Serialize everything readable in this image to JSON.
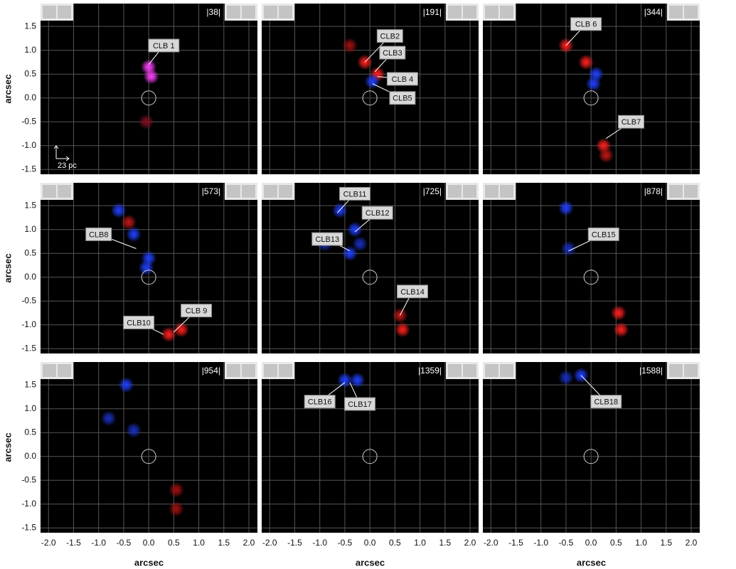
{
  "chart_data": [
    {
      "type": "image",
      "title": "|38|",
      "ylabel": "arcsec",
      "scalebar_label": "23 pc",
      "xlim": [
        -2.16,
        2.17
      ],
      "ylim": [
        -1.6,
        1.98
      ],
      "xticks": [
        {
          "value": -2,
          "label": "-2.0"
        },
        -1.5,
        {
          "value": -1,
          "label": "-1.0"
        },
        -0.5,
        {
          "value": 0,
          "label": "0.0"
        },
        0.5,
        {
          "value": 1,
          "label": "1.0"
        },
        1.5,
        {
          "value": 2,
          "label": "2.0"
        }
      ],
      "yticks": [
        -1.5,
        {
          "value": -1,
          "label": "-1.0"
        },
        -0.5,
        {
          "value": 0,
          "label": "0.0"
        },
        0.5,
        {
          "value": 1,
          "label": "1.0"
        },
        1.5
      ],
      "grid": true,
      "spots": [
        {
          "x": 0,
          "y": 0.65,
          "color": "#ff40ff"
        },
        {
          "x": 0.05,
          "y": 0.45,
          "color": "#ff40ff"
        },
        {
          "x": -0.05,
          "y": -0.5,
          "color": "#801020"
        }
      ],
      "annotations": [
        {
          "text": "CLB 1",
          "x": 0,
          "y": 0.7,
          "text_x": 0.3,
          "text_y": 1.1
        }
      ]
    },
    {
      "type": "image",
      "title": "|191|",
      "xlim": [
        -2.16,
        2.17
      ],
      "ylim": [
        -1.6,
        1.98
      ],
      "xticks": [
        {
          "value": -2,
          "label": "-2.0"
        },
        -1.5,
        {
          "value": -1,
          "label": "-1.0"
        },
        -0.5,
        {
          "value": 0,
          "label": "0.0"
        },
        0.5,
        {
          "value": 1,
          "label": "1.0"
        },
        1.5,
        {
          "value": 2,
          "label": "2.0"
        }
      ],
      "yticks": [
        -1.5,
        {
          "value": -1,
          "label": "-1.0"
        },
        -0.5,
        {
          "value": 0,
          "label": "0.0"
        },
        0.5,
        {
          "value": 1,
          "label": "1.0"
        },
        1.5
      ],
      "grid": true,
      "spots": [
        {
          "x": -0.1,
          "y": 0.75,
          "color": "#ff2020"
        },
        {
          "x": 0.15,
          "y": 0.5,
          "color": "#ff2020"
        },
        {
          "x": 0.05,
          "y": 0.35,
          "color": "#2040ff"
        },
        {
          "x": -0.4,
          "y": 1.1,
          "color": "#a01010"
        }
      ],
      "annotations": [
        {
          "text": "CLB2",
          "x": -0.1,
          "y": 0.75,
          "text_x": 0.4,
          "text_y": 1.3
        },
        {
          "text": "CLB3",
          "x": 0.1,
          "y": 0.55,
          "text_x": 0.45,
          "text_y": 0.95
        },
        {
          "text": "CLB 4",
          "x": 0.15,
          "y": 0.45,
          "text_x": 0.65,
          "text_y": 0.4
        },
        {
          "text": "CLB5",
          "x": 0.05,
          "y": 0.3,
          "text_x": 0.65,
          "text_y": 0
        }
      ]
    },
    {
      "type": "image",
      "title": "|344|",
      "xlim": [
        -2.16,
        2.17
      ],
      "ylim": [
        -1.6,
        1.98
      ],
      "xticks": [
        {
          "value": -2,
          "label": "-2.0"
        },
        -1.5,
        {
          "value": -1,
          "label": "-1.0"
        },
        -0.5,
        {
          "value": 0,
          "label": "0.0"
        },
        0.5,
        {
          "value": 1,
          "label": "1.0"
        },
        1.5,
        {
          "value": 2,
          "label": "2.0"
        }
      ],
      "yticks": [
        -1.5,
        {
          "value": -1,
          "label": "-1.0"
        },
        -0.5,
        {
          "value": 0,
          "label": "0.0"
        },
        0.5,
        {
          "value": 1,
          "label": "1.0"
        },
        1.5
      ],
      "grid": true,
      "spots": [
        {
          "x": -0.5,
          "y": 1.1,
          "color": "#ff2020"
        },
        {
          "x": -0.1,
          "y": 0.75,
          "color": "#ff2020"
        },
        {
          "x": 0.1,
          "y": 0.5,
          "color": "#2040ff"
        },
        {
          "x": 0.05,
          "y": 0.3,
          "color": "#2040ff"
        },
        {
          "x": 0.25,
          "y": -1,
          "color": "#ff2020"
        },
        {
          "x": 0.3,
          "y": -1.2,
          "color": "#c01818"
        }
      ],
      "annotations": [
        {
          "text": "CLB 6",
          "x": -0.5,
          "y": 1.1,
          "text_x": -0.1,
          "text_y": 1.55
        },
        {
          "text": "CLB7",
          "x": 0.3,
          "y": -0.85,
          "text_x": 0.8,
          "text_y": -0.5
        }
      ]
    },
    {
      "type": "image",
      "title": "|573|",
      "ylabel": "arcsec",
      "xlim": [
        -2.16,
        2.17
      ],
      "ylim": [
        -1.6,
        1.98
      ],
      "xticks": [
        {
          "value": -2,
          "label": "-2.0"
        },
        -1.5,
        {
          "value": -1,
          "label": "-1.0"
        },
        -0.5,
        {
          "value": 0,
          "label": "0.0"
        },
        0.5,
        {
          "value": 1,
          "label": "1.0"
        },
        1.5,
        {
          "value": 2,
          "label": "2.0"
        }
      ],
      "yticks": [
        -1.5,
        {
          "value": -1,
          "label": "-1.0"
        },
        -0.5,
        {
          "value": 0,
          "label": "0.0"
        },
        0.5,
        {
          "value": 1,
          "label": "1.0"
        },
        1.5
      ],
      "grid": true,
      "spots": [
        {
          "x": -0.6,
          "y": 1.4,
          "color": "#2040ff"
        },
        {
          "x": -0.3,
          "y": 0.9,
          "color": "#2040ff"
        },
        {
          "x": 0,
          "y": 0.4,
          "color": "#2040ff"
        },
        {
          "x": -0.05,
          "y": 0.2,
          "color": "#2040ff"
        },
        {
          "x": 0.4,
          "y": -1.2,
          "color": "#ff2020"
        },
        {
          "x": 0.65,
          "y": -1.1,
          "color": "#ff2020"
        },
        {
          "x": -0.4,
          "y": 1.15,
          "color": "#c01818"
        }
      ],
      "annotations": [
        {
          "text": "CLB8",
          "x": -0.25,
          "y": 0.6,
          "text_x": -1,
          "text_y": 0.9
        },
        {
          "text": "CLB10",
          "x": 0.3,
          "y": -1.2,
          "text_x": -0.2,
          "text_y": -0.95
        },
        {
          "text": "CLB 9",
          "x": 0.5,
          "y": -1.15,
          "text_x": 0.95,
          "text_y": -0.7
        }
      ]
    },
    {
      "type": "image",
      "title": "|725|",
      "xlim": [
        -2.16,
        2.17
      ],
      "ylim": [
        -1.6,
        1.98
      ],
      "xticks": [
        {
          "value": -2,
          "label": "-2.0"
        },
        -1.5,
        {
          "value": -1,
          "label": "-1.0"
        },
        -0.5,
        {
          "value": 0,
          "label": "0.0"
        },
        0.5,
        {
          "value": 1,
          "label": "1.0"
        },
        1.5,
        {
          "value": 2,
          "label": "2.0"
        }
      ],
      "yticks": [
        -1.5,
        {
          "value": -1,
          "label": "-1.0"
        },
        -0.5,
        {
          "value": 0,
          "label": "0.0"
        },
        0.5,
        {
          "value": 1,
          "label": "1.0"
        },
        1.5
      ],
      "grid": true,
      "spots": [
        {
          "x": -0.6,
          "y": 1.4,
          "color": "#2040ff"
        },
        {
          "x": -0.3,
          "y": 1,
          "color": "#2040ff"
        },
        {
          "x": -0.4,
          "y": 0.5,
          "color": "#2040ff"
        },
        {
          "x": -0.9,
          "y": 0.7,
          "color": "#1830c0"
        },
        {
          "x": -0.2,
          "y": 0.7,
          "color": "#1830c0"
        },
        {
          "x": 0.65,
          "y": -1.1,
          "color": "#ff2020"
        },
        {
          "x": 0.6,
          "y": -0.8,
          "color": "#c01818"
        }
      ],
      "annotations": [
        {
          "text": "CLB11",
          "x": -0.65,
          "y": 1.35,
          "text_x": -0.3,
          "text_y": 1.75
        },
        {
          "text": "CLB12",
          "x": -0.3,
          "y": 0.95,
          "text_x": 0.15,
          "text_y": 1.35
        },
        {
          "text": "CLB13",
          "x": -0.4,
          "y": 0.55,
          "text_x": -0.85,
          "text_y": 0.8
        },
        {
          "text": "CLB14",
          "x": 0.6,
          "y": -0.8,
          "text_x": 0.85,
          "text_y": -0.3
        }
      ]
    },
    {
      "type": "image",
      "title": "|878|",
      "xlim": [
        -2.16,
        2.17
      ],
      "ylim": [
        -1.6,
        1.98
      ],
      "xticks": [
        {
          "value": -2,
          "label": "-2.0"
        },
        -1.5,
        {
          "value": -1,
          "label": "-1.0"
        },
        -0.5,
        {
          "value": 0,
          "label": "0.0"
        },
        0.5,
        {
          "value": 1,
          "label": "1.0"
        },
        1.5,
        {
          "value": 2,
          "label": "2.0"
        }
      ],
      "yticks": [
        -1.5,
        {
          "value": -1,
          "label": "-1.0"
        },
        -0.5,
        {
          "value": 0,
          "label": "0.0"
        },
        0.5,
        {
          "value": 1,
          "label": "1.0"
        },
        1.5
      ],
      "grid": true,
      "spots": [
        {
          "x": -0.5,
          "y": 1.45,
          "color": "#2040ff"
        },
        {
          "x": -0.45,
          "y": 0.6,
          "color": "#1830c0"
        },
        {
          "x": 0.55,
          "y": -0.75,
          "color": "#ff2020"
        },
        {
          "x": 0.6,
          "y": -1.1,
          "color": "#ff2020"
        }
      ],
      "annotations": [
        {
          "text": "CLB15",
          "x": -0.45,
          "y": 0.55,
          "text_x": 0.25,
          "text_y": 0.9
        }
      ]
    },
    {
      "type": "image",
      "title": "|954|",
      "ylabel": "arcsec",
      "xlabel": "arcsec",
      "xlim": [
        -2.16,
        2.17
      ],
      "ylim": [
        -1.6,
        1.98
      ],
      "xticks": [
        {
          "value": -2,
          "label": "-2.0"
        },
        -1.5,
        {
          "value": -1,
          "label": "-1.0"
        },
        -0.5,
        {
          "value": 0,
          "label": "0.0"
        },
        0.5,
        {
          "value": 1,
          "label": "1.0"
        },
        1.5,
        {
          "value": 2,
          "label": "2.0"
        }
      ],
      "yticks": [
        -1.5,
        {
          "value": -1,
          "label": "-1.0"
        },
        -0.5,
        {
          "value": 0,
          "label": "0.0"
        },
        0.5,
        {
          "value": 1,
          "label": "1.0"
        },
        1.5
      ],
      "grid": true,
      "spots": [
        {
          "x": -0.45,
          "y": 1.5,
          "color": "#2040ff"
        },
        {
          "x": -0.8,
          "y": 0.8,
          "color": "#1830c0"
        },
        {
          "x": -0.3,
          "y": 0.55,
          "color": "#1830c0"
        },
        {
          "x": 0.55,
          "y": -0.7,
          "color": "#a01010"
        },
        {
          "x": 0.55,
          "y": -1.1,
          "color": "#a01010"
        }
      ],
      "annotations": []
    },
    {
      "type": "image",
      "title": "|1359|",
      "xlabel": "arcsec",
      "xlim": [
        -2.16,
        2.17
      ],
      "ylim": [
        -1.6,
        1.98
      ],
      "xticks": [
        {
          "value": -2,
          "label": "-2.0"
        },
        -1.5,
        {
          "value": -1,
          "label": "-1.0"
        },
        -0.5,
        {
          "value": 0,
          "label": "0.0"
        },
        0.5,
        {
          "value": 1,
          "label": "1.0"
        },
        1.5,
        {
          "value": 2,
          "label": "2.0"
        }
      ],
      "yticks": [
        -1.5,
        {
          "value": -1,
          "label": "-1.0"
        },
        -0.5,
        {
          "value": 0,
          "label": "0.0"
        },
        0.5,
        {
          "value": 1,
          "label": "1.0"
        },
        1.5
      ],
      "grid": true,
      "spots": [
        {
          "x": -0.5,
          "y": 1.6,
          "color": "#2040ff"
        },
        {
          "x": -0.25,
          "y": 1.6,
          "color": "#2040ff"
        }
      ],
      "annotations": [
        {
          "text": "CLB16",
          "x": -0.5,
          "y": 1.55,
          "text_x": -1,
          "text_y": 1.15
        },
        {
          "text": "CLB17",
          "x": -0.4,
          "y": 1.55,
          "text_x": -0.2,
          "text_y": 1.1
        }
      ]
    },
    {
      "type": "image",
      "title": "|1588|",
      "xlabel": "arcsec",
      "xlim": [
        -2.16,
        2.17
      ],
      "ylim": [
        -1.6,
        1.98
      ],
      "xticks": [
        {
          "value": -2,
          "label": "-2.0"
        },
        -1.5,
        {
          "value": -1,
          "label": "-1.0"
        },
        -0.5,
        {
          "value": 0,
          "label": "0.0"
        },
        0.5,
        {
          "value": 1,
          "label": "1.0"
        },
        1.5,
        {
          "value": 2,
          "label": "2.0"
        }
      ],
      "yticks": [
        -1.5,
        {
          "value": -1,
          "label": "-1.0"
        },
        -0.5,
        {
          "value": 0,
          "label": "0.0"
        },
        0.5,
        {
          "value": 1,
          "label": "1.0"
        },
        1.5
      ],
      "grid": true,
      "spots": [
        {
          "x": -0.2,
          "y": 1.7,
          "color": "#2040ff"
        },
        {
          "x": -0.5,
          "y": 1.65,
          "color": "#1830c0"
        }
      ],
      "annotations": [
        {
          "text": "CLB18",
          "x": -0.2,
          "y": 1.7,
          "text_x": 0.3,
          "text_y": 1.15
        }
      ]
    }
  ]
}
